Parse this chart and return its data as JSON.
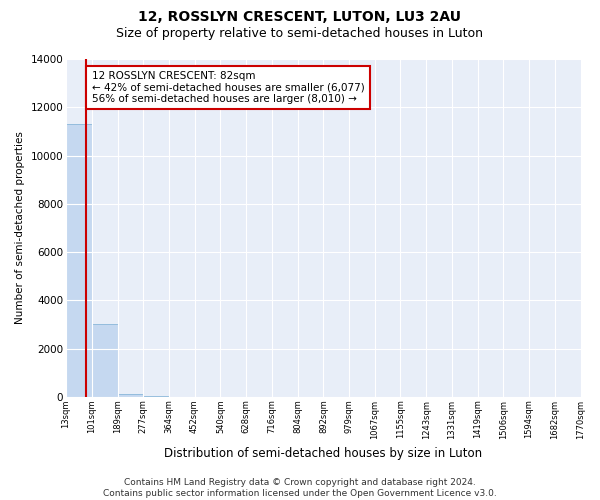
{
  "title": "12, ROSSLYN CRESCENT, LUTON, LU3 2AU",
  "subtitle": "Size of property relative to semi-detached houses in Luton",
  "xlabel": "Distribution of semi-detached houses by size in Luton",
  "ylabel": "Number of semi-detached properties",
  "bin_edges": [
    13,
    101,
    189,
    277,
    364,
    452,
    540,
    628,
    716,
    804,
    892,
    979,
    1067,
    1155,
    1243,
    1331,
    1419,
    1506,
    1594,
    1682,
    1770
  ],
  "bar_heights": [
    11300,
    3000,
    120,
    30,
    10,
    5,
    3,
    2,
    2,
    1,
    1,
    1,
    1,
    1,
    0,
    0,
    0,
    0,
    0,
    0
  ],
  "bar_color": "#c5d8f0",
  "bar_edgecolor": "#7aadd4",
  "property_size": 82,
  "property_line_color": "#cc0000",
  "annotation_text": "12 ROSSLYN CRESCENT: 82sqm\n← 42% of semi-detached houses are smaller (6,077)\n56% of semi-detached houses are larger (8,010) →",
  "annotation_box_color": "#cc0000",
  "ylim": [
    0,
    14000
  ],
  "yticks": [
    0,
    2000,
    4000,
    6000,
    8000,
    10000,
    12000,
    14000
  ],
  "tick_labels": [
    "13sqm",
    "101sqm",
    "189sqm",
    "277sqm",
    "364sqm",
    "452sqm",
    "540sqm",
    "628sqm",
    "716sqm",
    "804sqm",
    "892sqm",
    "979sqm",
    "1067sqm",
    "1155sqm",
    "1243sqm",
    "1331sqm",
    "1419sqm",
    "1506sqm",
    "1594sqm",
    "1682sqm",
    "1770sqm"
  ],
  "footer_text": "Contains HM Land Registry data © Crown copyright and database right 2024.\nContains public sector information licensed under the Open Government Licence v3.0.",
  "fig_bg_color": "#ffffff",
  "plot_bg_color": "#e8eef8",
  "grid_color": "#ffffff",
  "title_fontsize": 10,
  "subtitle_fontsize": 9,
  "footer_fontsize": 6.5,
  "annotation_fontsize": 7.5
}
